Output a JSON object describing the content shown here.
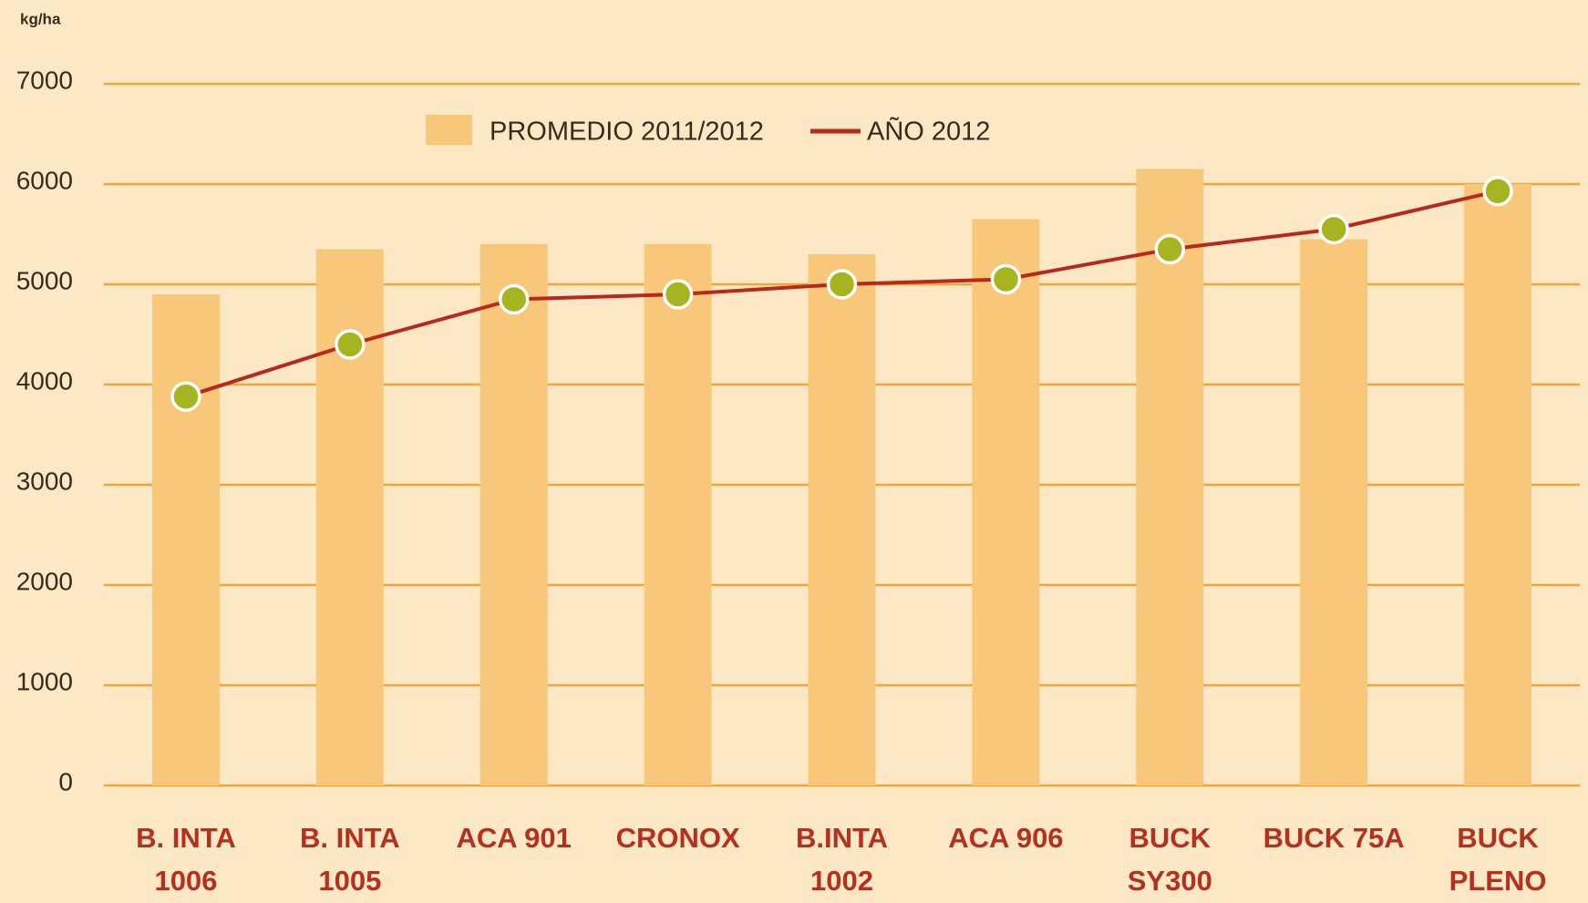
{
  "chart_data": {
    "type": "bar_line",
    "y_label": "kg/ha",
    "categories": [
      [
        "B. INTA",
        "1006"
      ],
      [
        "B. INTA",
        "1005"
      ],
      [
        "ACA 901"
      ],
      [
        "CRONOX"
      ],
      [
        "B.INTA",
        "1002"
      ],
      [
        "ACA 906"
      ],
      [
        "BUCK",
        "SY300"
      ],
      [
        "BUCK 75A"
      ],
      [
        "BUCK",
        "PLENO"
      ]
    ],
    "series": [
      {
        "name": "PROMEDIO 2011/2012",
        "type": "bar",
        "color": "#f9c77a",
        "values": [
          4900,
          5350,
          5400,
          5400,
          5300,
          5650,
          6150,
          5450,
          6000
        ]
      },
      {
        "name": "AÑO 2012",
        "type": "line",
        "color": "#b8281c",
        "marker_color": "#a6b51f",
        "values": [
          3880,
          4400,
          4850,
          4900,
          5000,
          5050,
          5350,
          5550,
          5930
        ]
      }
    ],
    "ylim": [
      0,
      7000
    ],
    "yticks": [
      0,
      1000,
      2000,
      3000,
      4000,
      5000,
      6000,
      7000
    ],
    "grid": true,
    "grid_color": "#f2a535"
  }
}
